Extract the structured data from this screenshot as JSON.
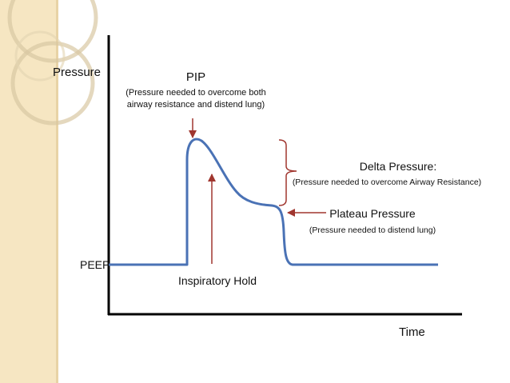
{
  "diagram": {
    "y_axis_label": "Pressure",
    "x_axis_label": "Time",
    "peep_label": "PEEP",
    "pip": {
      "title": "PIP",
      "line1": "(Pressure needed to overcome both",
      "line2": "airway resistance and distend lung)"
    },
    "inspiratory_hold_label": "Inspiratory Hold",
    "delta_pressure": {
      "title": "Delta Pressure:",
      "subtitle": "(Pressure needed to overcome Airway Resistance)"
    },
    "plateau_pressure": {
      "title": "Plateau Pressure",
      "subtitle": "(Pressure needed to distend lung)"
    },
    "colors": {
      "waveform": "#4a72b5",
      "arrow": "#a0362f",
      "axis": "#000000",
      "side_band": "#f6e6c2",
      "ring": "#d9c8a2"
    }
  }
}
